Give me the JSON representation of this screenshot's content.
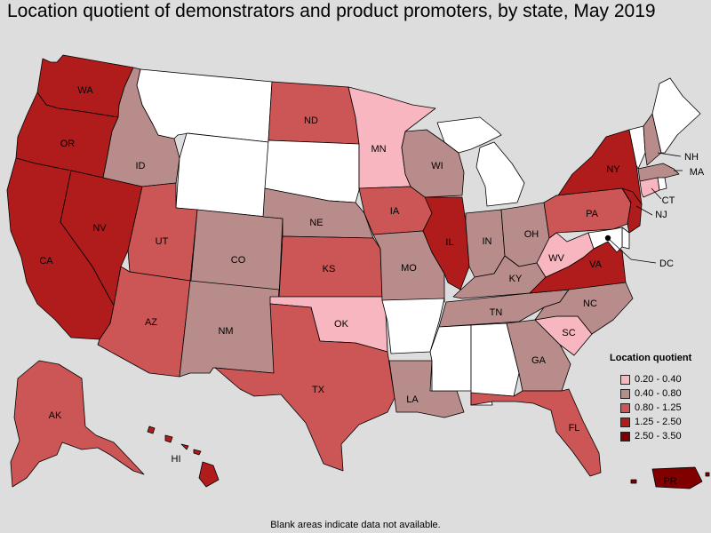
{
  "title": "Location quotient of demonstrators and product promoters, by state, May 2019",
  "footnote": "Blank areas indicate data not available.",
  "legend": {
    "title": "Location quotient",
    "items": [
      {
        "label": "0.20 - 0.40",
        "color": "#f7b6c0"
      },
      {
        "label": "0.40 - 0.80",
        "color": "#b98c8c"
      },
      {
        "label": "0.80 - 1.25",
        "color": "#cc5555"
      },
      {
        "label": "1.25 - 2.50",
        "color": "#b01c1c"
      },
      {
        "label": "2.50 - 3.50",
        "color": "#800000"
      }
    ]
  },
  "no_data_color": "#ffffff",
  "states": {
    "WA": {
      "label": "WA",
      "class": "1.25 - 2.50"
    },
    "OR": {
      "label": "OR",
      "class": "1.25 - 2.50"
    },
    "CA": {
      "label": "CA",
      "class": "1.25 - 2.50"
    },
    "NV": {
      "label": "NV",
      "class": "1.25 - 2.50"
    },
    "ID": {
      "label": "ID",
      "class": "0.40 - 0.80"
    },
    "MT": {
      "label": "",
      "class": "no data"
    },
    "WY": {
      "label": "",
      "class": "no data"
    },
    "UT": {
      "label": "UT",
      "class": "0.80 - 1.25"
    },
    "AZ": {
      "label": "AZ",
      "class": "0.80 - 1.25"
    },
    "CO": {
      "label": "CO",
      "class": "0.40 - 0.80"
    },
    "NM": {
      "label": "NM",
      "class": "0.40 - 0.80"
    },
    "ND": {
      "label": "ND",
      "class": "0.80 - 1.25"
    },
    "SD": {
      "label": "",
      "class": "no data"
    },
    "NE": {
      "label": "NE",
      "class": "0.40 - 0.80"
    },
    "KS": {
      "label": "KS",
      "class": "0.80 - 1.25"
    },
    "OK": {
      "label": "OK",
      "class": "0.20 - 0.40"
    },
    "TX": {
      "label": "TX",
      "class": "0.80 - 1.25"
    },
    "MN": {
      "label": "MN",
      "class": "0.20 - 0.40"
    },
    "IA": {
      "label": "IA",
      "class": "0.80 - 1.25"
    },
    "MO": {
      "label": "MO",
      "class": "0.40 - 0.80"
    },
    "AR": {
      "label": "",
      "class": "no data"
    },
    "LA": {
      "label": "LA",
      "class": "0.40 - 0.80"
    },
    "WI": {
      "label": "WI",
      "class": "0.40 - 0.80"
    },
    "IL": {
      "label": "IL",
      "class": "1.25 - 2.50"
    },
    "MI": {
      "label": "",
      "class": "no data"
    },
    "IN": {
      "label": "IN",
      "class": "0.40 - 0.80"
    },
    "OH": {
      "label": "OH",
      "class": "0.40 - 0.80"
    },
    "KY": {
      "label": "KY",
      "class": "0.40 - 0.80"
    },
    "TN": {
      "label": "TN",
      "class": "0.40 - 0.80"
    },
    "MS": {
      "label": "",
      "class": "no data"
    },
    "AL": {
      "label": "",
      "class": "no data"
    },
    "GA": {
      "label": "GA",
      "class": "0.40 - 0.80"
    },
    "FL": {
      "label": "FL",
      "class": "0.80 - 1.25"
    },
    "SC": {
      "label": "SC",
      "class": "0.20 - 0.40"
    },
    "NC": {
      "label": "NC",
      "class": "0.40 - 0.80"
    },
    "VA": {
      "label": "VA",
      "class": "1.25 - 2.50"
    },
    "WV": {
      "label": "WV",
      "class": "0.20 - 0.40"
    },
    "PA": {
      "label": "PA",
      "class": "0.80 - 1.25"
    },
    "NY": {
      "label": "NY",
      "class": "1.25 - 2.50"
    },
    "ME": {
      "label": "",
      "class": "no data"
    },
    "VT": {
      "label": "",
      "class": "no data"
    },
    "NH": {
      "label": "NH",
      "class": "0.40 - 0.80"
    },
    "MA": {
      "label": "MA",
      "class": "0.40 - 0.80"
    },
    "CT": {
      "label": "CT",
      "class": "0.20 - 0.40"
    },
    "RI": {
      "label": "",
      "class": "no data"
    },
    "NJ": {
      "label": "NJ",
      "class": "1.25 - 2.50"
    },
    "DE": {
      "label": "",
      "class": "no data"
    },
    "MD": {
      "label": "",
      "class": "no data"
    },
    "DC": {
      "label": "DC",
      "class": "no data"
    },
    "AK": {
      "label": "AK",
      "class": "0.80 - 1.25"
    },
    "HI": {
      "label": "HI",
      "class": "1.25 - 2.50"
    },
    "PR": {
      "label": "PR",
      "class": "2.50 - 3.50"
    }
  }
}
